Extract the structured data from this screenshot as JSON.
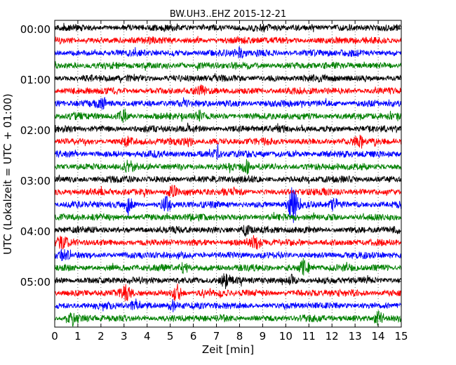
{
  "chart_data": {
    "type": "line",
    "title": "BW.UH3..EHZ 2015-12-21",
    "xlabel": "Zeit  [min]",
    "ylabel": "UTC (Lokalzeit = UTC + 01:00)",
    "xlim": [
      0,
      15
    ],
    "x_ticks": [
      "0",
      "1",
      "2",
      "3",
      "4",
      "5",
      "6",
      "7",
      "8",
      "9",
      "10",
      "11",
      "12",
      "13",
      "14",
      "15"
    ],
    "y_ticks": [
      "00:00",
      "01:00",
      "02:00",
      "03:00",
      "04:00",
      "05:00"
    ],
    "trace_minutes": 15,
    "trace_count": 24,
    "colors": [
      "#000000",
      "#ff0000",
      "#0000ff",
      "#008000"
    ],
    "grid": "dotted",
    "events": [
      {
        "trace": 2,
        "t": 8.0,
        "amp": 0.6
      },
      {
        "trace": 5,
        "t": 6.3,
        "amp": 0.5
      },
      {
        "trace": 6,
        "t": 2.1,
        "amp": 0.5
      },
      {
        "trace": 7,
        "t": 3.0,
        "amp": 0.8
      },
      {
        "trace": 7,
        "t": 6.3,
        "amp": 0.6
      },
      {
        "trace": 9,
        "t": 3.1,
        "amp": 0.5
      },
      {
        "trace": 9,
        "t": 5.8,
        "amp": 0.5
      },
      {
        "trace": 9,
        "t": 13.2,
        "amp": 0.7
      },
      {
        "trace": 10,
        "t": 7.0,
        "amp": 0.6
      },
      {
        "trace": 11,
        "t": 3.2,
        "amp": 0.7
      },
      {
        "trace": 11,
        "t": 8.3,
        "amp": 0.8
      },
      {
        "trace": 13,
        "t": 5.1,
        "amp": 0.9
      },
      {
        "trace": 14,
        "t": 3.2,
        "amp": 0.8
      },
      {
        "trace": 14,
        "t": 4.8,
        "amp": 0.9
      },
      {
        "trace": 14,
        "t": 10.3,
        "amp": 2.5
      },
      {
        "trace": 14,
        "t": 12.1,
        "amp": 0.8
      },
      {
        "trace": 16,
        "t": 8.3,
        "amp": 0.8
      },
      {
        "trace": 17,
        "t": 0.3,
        "amp": 0.7
      },
      {
        "trace": 17,
        "t": 8.7,
        "amp": 0.9
      },
      {
        "trace": 18,
        "t": 0.4,
        "amp": 0.8
      },
      {
        "trace": 19,
        "t": 5.6,
        "amp": 0.8
      },
      {
        "trace": 19,
        "t": 10.8,
        "amp": 1.2
      },
      {
        "trace": 20,
        "t": 7.4,
        "amp": 0.8
      },
      {
        "trace": 20,
        "t": 10.3,
        "amp": 0.7
      },
      {
        "trace": 21,
        "t": 3.1,
        "amp": 0.9
      },
      {
        "trace": 21,
        "t": 5.3,
        "amp": 1.3
      },
      {
        "trace": 22,
        "t": 3.5,
        "amp": 0.8
      },
      {
        "trace": 22,
        "t": 5.1,
        "amp": 0.8
      },
      {
        "trace": 23,
        "t": 0.8,
        "amp": 0.8
      },
      {
        "trace": 23,
        "t": 14.0,
        "amp": 0.9
      }
    ]
  }
}
